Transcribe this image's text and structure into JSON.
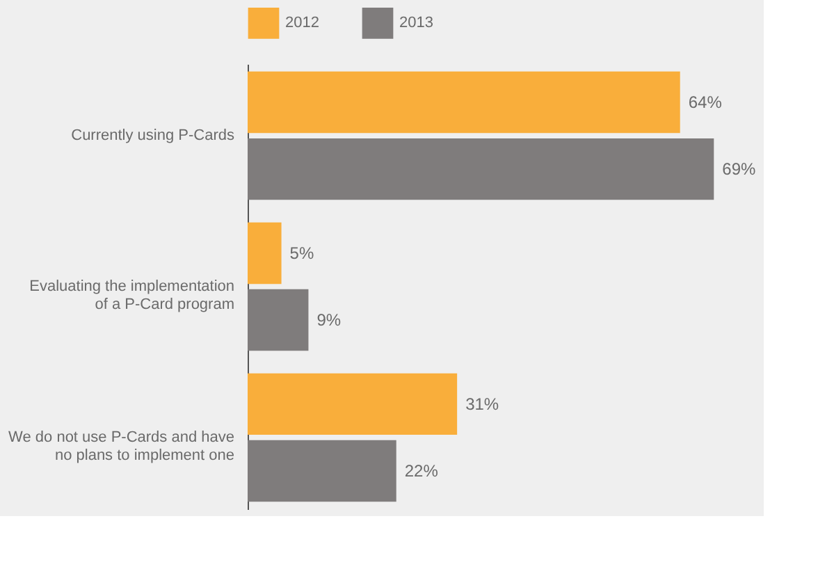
{
  "chart_data": {
    "type": "bar",
    "orientation": "horizontal",
    "categories": [
      "Currently using P-Cards",
      "Evaluating the implementation of a P-Card program",
      "We do not use P-Cards and have no plans to implement one"
    ],
    "series": [
      {
        "name": "2012",
        "color": "#f9ae3b",
        "values": [
          64,
          5,
          31
        ],
        "value_labels": [
          "64%",
          "5%",
          "31%"
        ]
      },
      {
        "name": "2013",
        "color": "#7f7c7c",
        "values": [
          69,
          9,
          22
        ],
        "value_labels": [
          "69%",
          "9%",
          "22%"
        ]
      }
    ],
    "tick_labels": "y",
    "legend": "top",
    "grid": false
  }
}
